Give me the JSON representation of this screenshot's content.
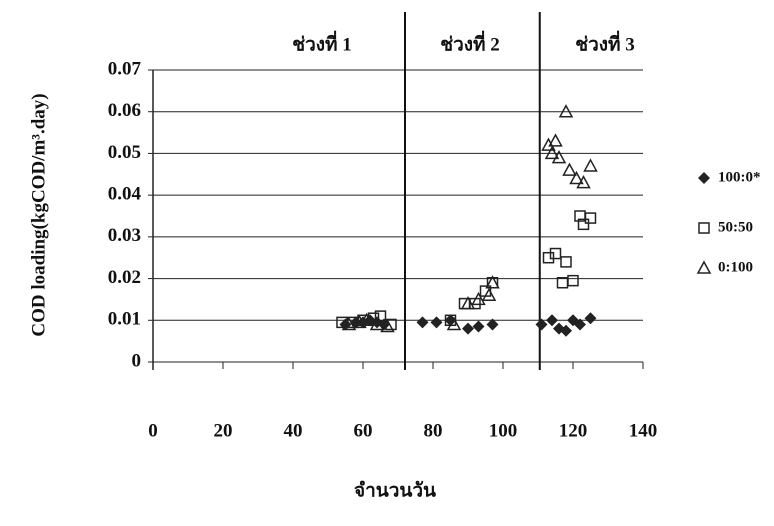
{
  "chart_data": {
    "type": "scatter",
    "y_label": "COD loading(kgCOD/m³.day)",
    "x_label": "จำนวนวัน",
    "xlim": [
      0,
      140
    ],
    "xticks": [
      0,
      20,
      40,
      60,
      80,
      100,
      120,
      140
    ],
    "ylim": [
      0,
      0.07
    ],
    "yticks": [
      0,
      0.01,
      0.02,
      0.03,
      0.04,
      0.05,
      0.06,
      0.07
    ],
    "grid": true,
    "separators": [
      72,
      110.5
    ],
    "phase_labels": [
      "ช่วงที่ 1",
      "ช่วงที่ 2",
      "ช่วงที่ 3"
    ],
    "series": [
      {
        "name": "100:0*",
        "color": "#222222",
        "marker": "diamond",
        "x": [
          55,
          58,
          60,
          62,
          64,
          66,
          77,
          81,
          85,
          90,
          93,
          97,
          111,
          114,
          116,
          118,
          120,
          122,
          125
        ],
        "values": [
          0.009,
          0.0095,
          0.0095,
          0.01,
          0.0095,
          0.009,
          0.0095,
          0.0095,
          0.01,
          0.008,
          0.0085,
          0.009,
          0.009,
          0.01,
          0.008,
          0.0075,
          0.01,
          0.009,
          0.0105
        ]
      },
      {
        "name": "50:50",
        "color": "#222222",
        "marker": "square",
        "x": [
          54,
          57,
          60,
          63,
          65,
          68,
          85,
          89,
          92,
          95,
          97,
          113,
          115,
          117,
          118,
          120,
          122,
          123,
          125
        ],
        "values": [
          0.0095,
          0.0095,
          0.01,
          0.0105,
          0.011,
          0.009,
          0.01,
          0.014,
          0.014,
          0.017,
          0.019,
          0.025,
          0.026,
          0.019,
          0.024,
          0.0195,
          0.035,
          0.033,
          0.0345
        ]
      },
      {
        "name": "0:100",
        "color": "#222222",
        "marker": "triangle",
        "x": [
          56,
          59,
          61,
          64,
          67,
          86,
          90,
          93,
          96,
          97,
          113,
          114,
          115,
          116,
          118,
          119,
          121,
          123,
          125
        ],
        "values": [
          0.009,
          0.0095,
          0.01,
          0.009,
          0.0085,
          0.009,
          0.014,
          0.015,
          0.016,
          0.019,
          0.052,
          0.05,
          0.053,
          0.049,
          0.06,
          0.046,
          0.044,
          0.043,
          0.047
        ]
      }
    ]
  }
}
